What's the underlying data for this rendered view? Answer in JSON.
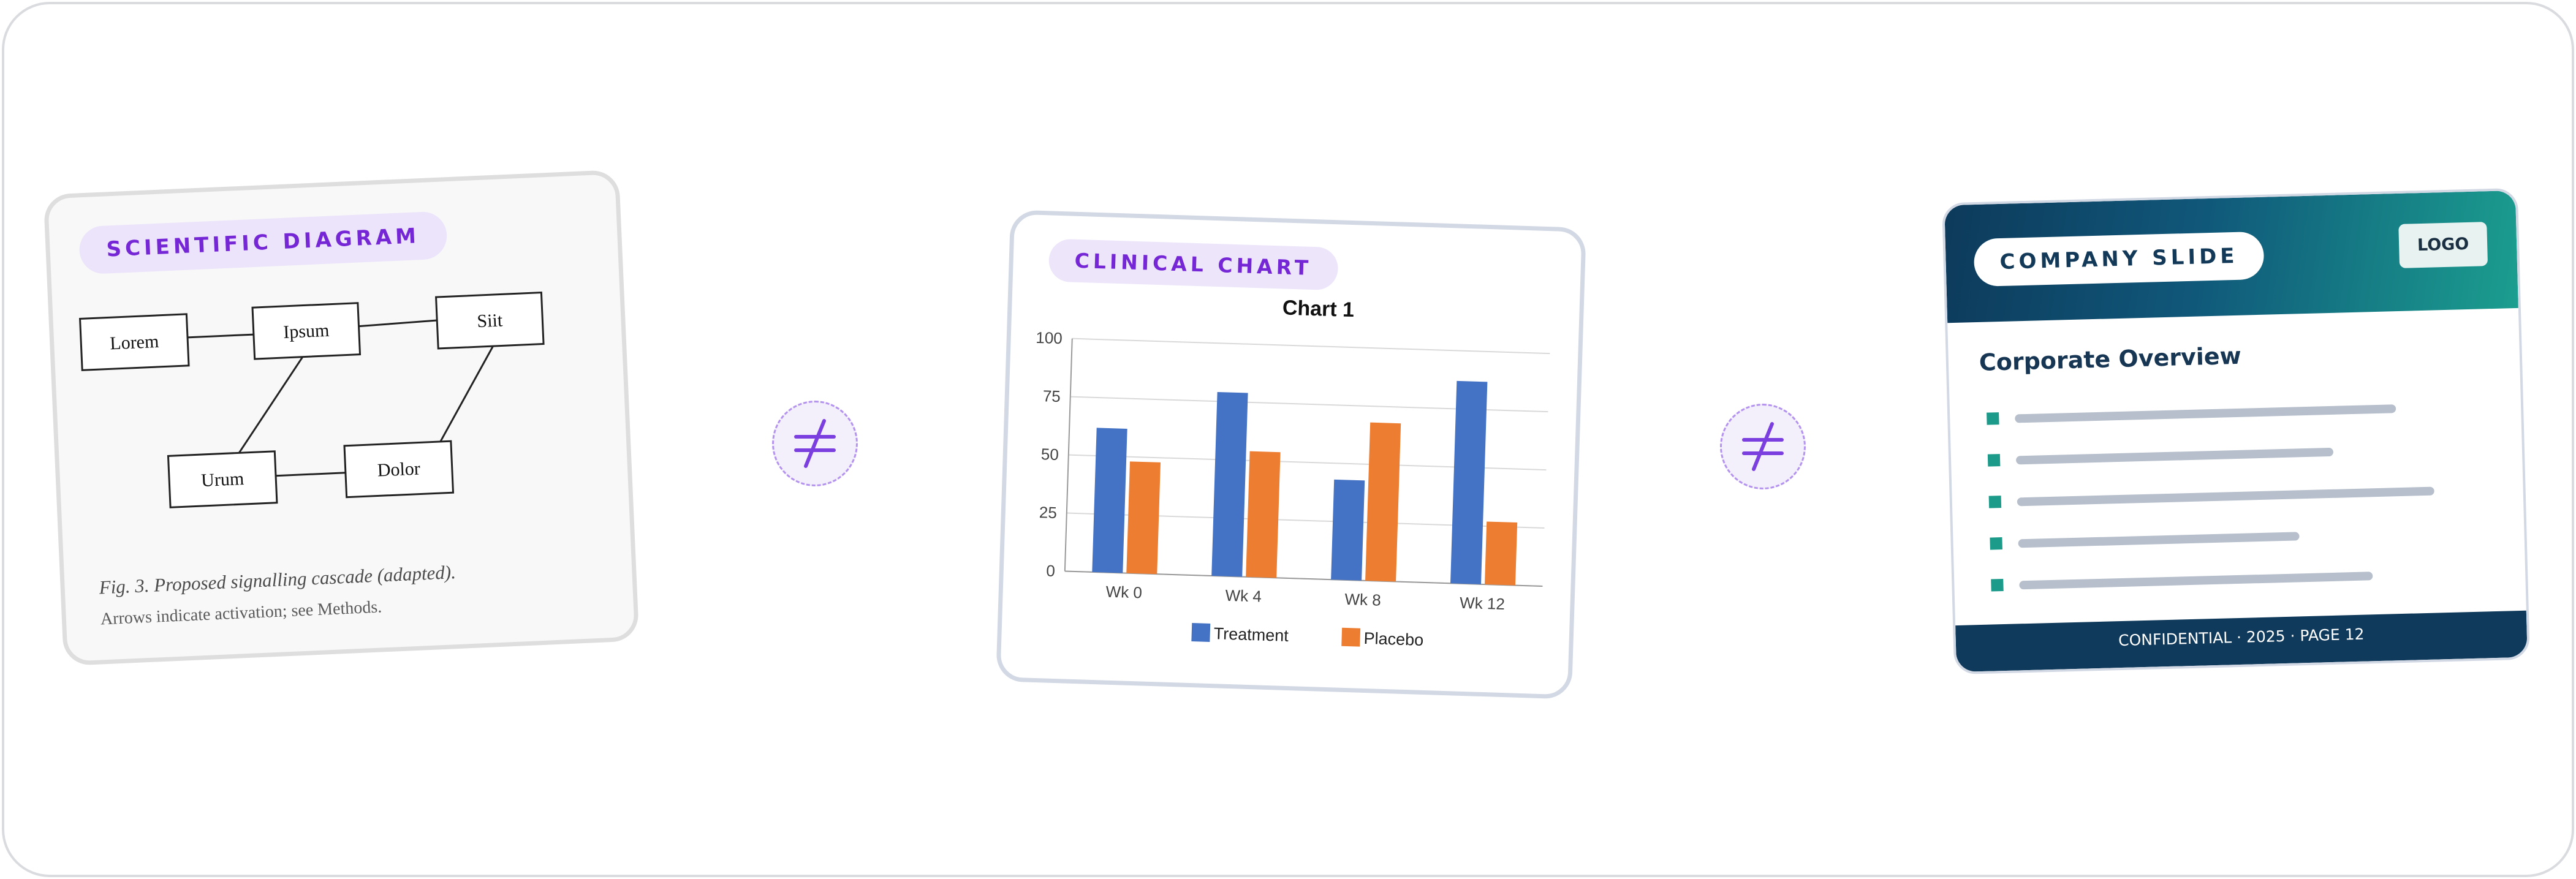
{
  "scientific_diagram": {
    "label": "SCIENTIFIC DIAGRAM",
    "nodes": [
      "Lorem",
      "Ipsum",
      "Siit",
      "Urum",
      "Dolor"
    ],
    "caption": "Fig. 3. Proposed signalling cascade (adapted).",
    "note": "Arrows indicate activation; see Methods."
  },
  "clinical_chart": {
    "label": "CLINICAL CHART"
  },
  "chart_data": {
    "type": "bar",
    "title": "Chart 1",
    "categories": [
      "Wk 0",
      "Wk 4",
      "Wk 8",
      "Wk 12"
    ],
    "series": [
      {
        "name": "Treatment",
        "values": [
          62,
          79,
          43,
          87
        ],
        "color": "#4472c4"
      },
      {
        "name": "Placebo",
        "values": [
          48,
          54,
          68,
          27
        ],
        "color": "#ed7d31"
      }
    ],
    "yticks": [
      "0",
      "25",
      "50",
      "75",
      "100"
    ],
    "ylim": [
      0,
      100
    ],
    "grid": true,
    "legend": "bottom"
  },
  "company_slide": {
    "label": "COMPANY SLIDE",
    "logo": "LOGO",
    "title": "Corporate Overview",
    "bullets": [
      0.84,
      0.7,
      0.92,
      0.62,
      0.78
    ],
    "footer": "CONFIDENTIAL · 2025 · PAGE 12",
    "colors": {
      "accent": "#1c9a8a",
      "header_dark": "#0d3a5b",
      "header_light": "#1b9e8f"
    }
  },
  "separators": {
    "icon": "not-equal-icon",
    "color": "#7b3fe0"
  }
}
